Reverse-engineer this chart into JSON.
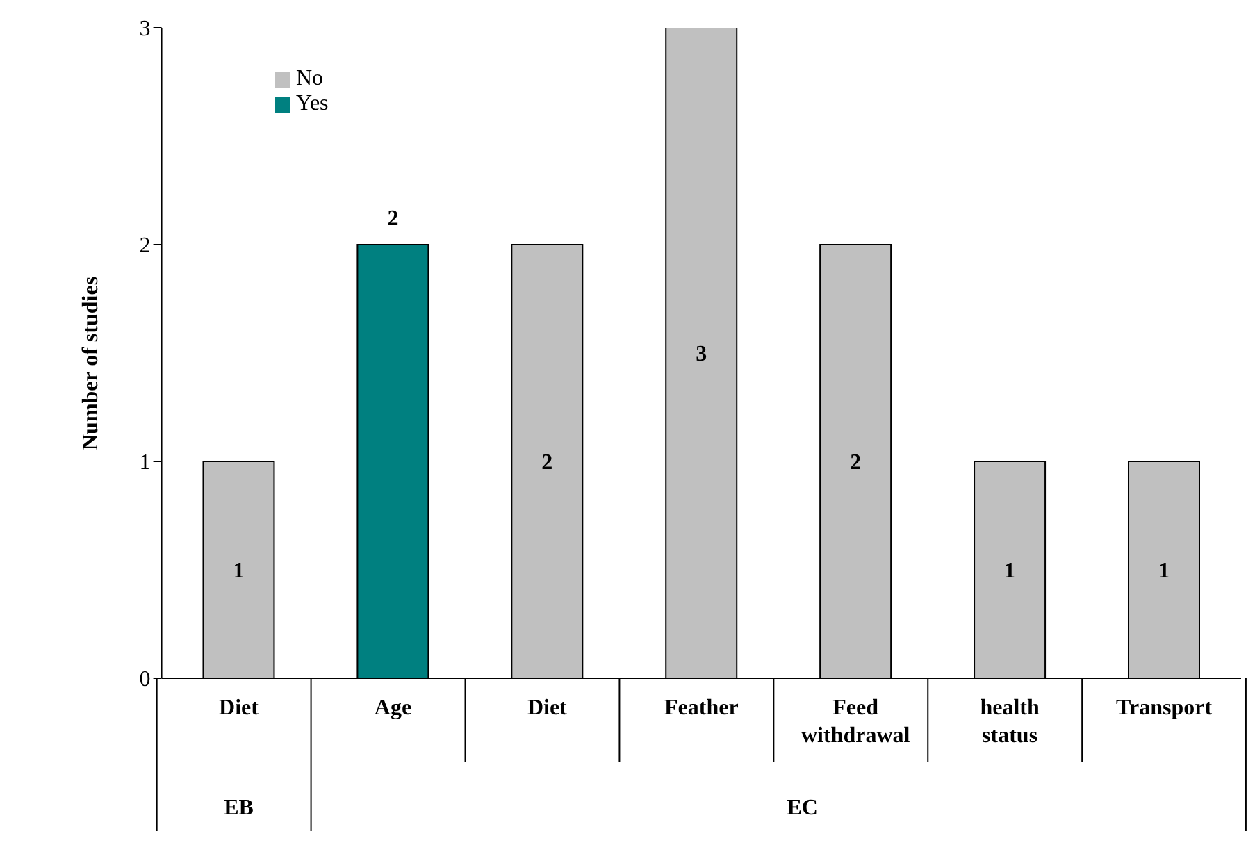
{
  "chart_data": {
    "type": "bar",
    "ylabel": "Number of studies",
    "categories": [
      "Diet",
      "Age",
      "Diet",
      "Feather",
      "Feed withdrawal",
      "health status",
      "Transport"
    ],
    "series": [
      {
        "name": "Yes",
        "color": "#008080",
        "values": [
          null,
          2,
          null,
          null,
          null,
          null,
          null
        ]
      },
      {
        "name": "No",
        "color": "#c0c0c0",
        "values": [
          1,
          null,
          2,
          3,
          2,
          1,
          1
        ]
      }
    ],
    "stacked": true,
    "ylim": [
      0,
      3
    ],
    "yticks": [
      0,
      1,
      2,
      3
    ],
    "grid": false,
    "legend": "top left",
    "data_labels": true,
    "annotations": [
      "EB",
      "EC"
    ]
  }
}
